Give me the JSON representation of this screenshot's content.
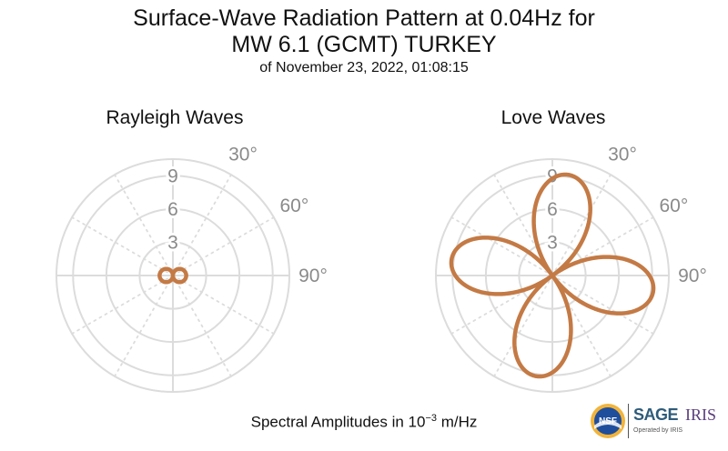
{
  "title": {
    "line1": "Surface-Wave Radiation Pattern at 0.04Hz for",
    "line2": "MW 6.1 (GCMT) TURKEY",
    "subtitle": "of November 23, 2022, 01:08:15"
  },
  "footer": {
    "text": "Spectral Amplitudes in 10",
    "exponent": "−3",
    "unit": " m/Hz"
  },
  "logos": {
    "nsf": "NSF",
    "sage": "SAGE",
    "iris": "IRIS",
    "operated": "Operated by IRIS"
  },
  "colors": {
    "pattern": "#c47a45",
    "grid": "#dcdcdc",
    "tick_text": "#8a8a8a"
  },
  "chart_data": [
    {
      "type": "polar",
      "title": "Rayleigh Waves",
      "r_ticks": [
        "3",
        "6",
        "9"
      ],
      "r_max": 10.5,
      "angle_ticks": [
        "30°",
        "60°",
        "90°"
      ],
      "direction": "clockwise-from-north",
      "grid": true,
      "pattern": {
        "kind": "lobes",
        "n_lobes": 2,
        "peak_amplitude": 1.2,
        "peak_azimuth_deg": 90
      }
    },
    {
      "type": "polar",
      "title": "Love Waves",
      "r_ticks": [
        "3",
        "6",
        "9"
      ],
      "r_max": 10.5,
      "angle_ticks": [
        "30°",
        "60°",
        "90°"
      ],
      "direction": "clockwise-from-north",
      "grid": true,
      "pattern": {
        "kind": "lobes",
        "n_lobes": 4,
        "peak_amplitude": 9.2,
        "peak_azimuth_deg": 9
      }
    }
  ]
}
